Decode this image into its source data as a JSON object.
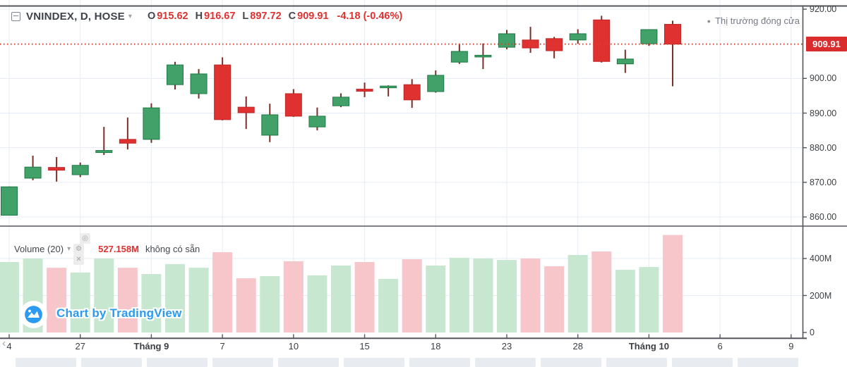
{
  "ui": {
    "header": {
      "symbol": "VNINDEX, D, HOSE",
      "ohlc": [
        {
          "k": "O",
          "v": "915.62"
        },
        {
          "k": "H",
          "v": "916.67"
        },
        {
          "k": "L",
          "v": "897.72"
        },
        {
          "k": "C",
          "v": "909.91"
        }
      ],
      "change": "-4.18 (-0.46%)",
      "market_status": "Thị trường đóng cửa",
      "status_dot": "●",
      "dropdown_glyph": "▾"
    },
    "badge": "909.91",
    "volume_pane": {
      "title": "Volume (20)",
      "caret": "▾",
      "value": "527.158M",
      "note": "không có sẵn",
      "icons": [
        {
          "name": "eye-icon",
          "glyph": "◎"
        },
        {
          "name": "gear-icon",
          "glyph": "⚙"
        },
        {
          "name": "close-icon",
          "glyph": "✕"
        }
      ]
    },
    "attribution": "Chart by TradingView",
    "scroll_left_glyph": "‹"
  },
  "colors": {
    "up": "#42a168",
    "up_border": "#1d7a45",
    "down": "#e03131",
    "down_border": "#bf2626",
    "wick": "#7c2f26",
    "vol_up": "#c7e7d0",
    "vol_down": "#f7c6cb",
    "grid": "#e6ecf3",
    "frame": "#53565c",
    "dotted": "#e23b2b",
    "badge_bg": "#da2c2c",
    "red_text": "#e03131",
    "blue": "#2b9af3",
    "muted": "#787b86",
    "axis_text": "#3c4043"
  },
  "chart_data": {
    "type": "candlestick",
    "title": "VNINDEX, D, HOSE",
    "legend_ohlc": {
      "o": 915.62,
      "h": 916.67,
      "l": 897.72,
      "c": 909.91,
      "change": -4.18,
      "change_pct": -0.46
    },
    "last_close": 909.91,
    "price_axis": {
      "min": 860,
      "max": 920,
      "ticks": [
        {
          "label": "920.00",
          "value": 920
        },
        {
          "label": "900.00",
          "value": 900
        },
        {
          "label": "890.00",
          "value": 890
        },
        {
          "label": "880.00",
          "value": 880
        },
        {
          "label": "870.00",
          "value": 870
        },
        {
          "label": "860.00",
          "value": 860
        }
      ]
    },
    "time_axis": {
      "ticks": [
        {
          "label": "4",
          "candle_index": 0
        },
        {
          "label": "27",
          "candle_index": 3
        },
        {
          "label": "Tháng 9",
          "candle_index": 6,
          "bold": true
        },
        {
          "label": "7",
          "candle_index": 9
        },
        {
          "label": "10",
          "candle_index": 12
        },
        {
          "label": "15",
          "candle_index": 15
        },
        {
          "label": "18",
          "candle_index": 18
        },
        {
          "label": "23",
          "candle_index": 21
        },
        {
          "label": "28",
          "candle_index": 24
        },
        {
          "label": "Tháng 10",
          "candle_index": 27,
          "bold": true
        },
        {
          "label": "6",
          "candle_index": 30
        },
        {
          "label": "9",
          "candle_index": 33
        }
      ]
    },
    "candles": [
      {
        "o": 860.5,
        "h": 868.8,
        "l": 860.4,
        "c": 868.7
      },
      {
        "o": 871.2,
        "h": 877.7,
        "l": 870.6,
        "c": 874.4
      },
      {
        "o": 874.3,
        "h": 877.3,
        "l": 870.2,
        "c": 873.5
      },
      {
        "o": 872.2,
        "h": 875.7,
        "l": 871.5,
        "c": 874.9
      },
      {
        "o": 878.6,
        "h": 886.0,
        "l": 877.9,
        "c": 879.2
      },
      {
        "o": 882.4,
        "h": 888.7,
        "l": 879.5,
        "c": 881.3
      },
      {
        "o": 882.4,
        "h": 892.8,
        "l": 881.4,
        "c": 891.5
      },
      {
        "o": 898.2,
        "h": 904.8,
        "l": 896.8,
        "c": 903.9
      },
      {
        "o": 895.6,
        "h": 902.7,
        "l": 894.2,
        "c": 901.3
      },
      {
        "o": 903.9,
        "h": 906.1,
        "l": 887.9,
        "c": 888.1
      },
      {
        "o": 891.7,
        "h": 894.8,
        "l": 885.4,
        "c": 890.1
      },
      {
        "o": 883.6,
        "h": 892.7,
        "l": 881.6,
        "c": 889.5
      },
      {
        "o": 895.6,
        "h": 896.9,
        "l": 888.9,
        "c": 889.1
      },
      {
        "o": 886.0,
        "h": 891.6,
        "l": 885.0,
        "c": 889.1
      },
      {
        "o": 892.1,
        "h": 895.7,
        "l": 891.7,
        "c": 894.6
      },
      {
        "o": 896.9,
        "h": 898.8,
        "l": 894.6,
        "c": 896.3
      },
      {
        "o": 897.4,
        "h": 898.0,
        "l": 894.8,
        "c": 897.8
      },
      {
        "o": 898.2,
        "h": 899.8,
        "l": 891.5,
        "c": 893.8
      },
      {
        "o": 896.2,
        "h": 902.3,
        "l": 895.9,
        "c": 900.9
      },
      {
        "o": 904.7,
        "h": 910.0,
        "l": 904.2,
        "c": 907.8
      },
      {
        "o": 906.2,
        "h": 910.1,
        "l": 902.7,
        "c": 906.7
      },
      {
        "o": 909.0,
        "h": 914.0,
        "l": 908.4,
        "c": 912.9
      },
      {
        "o": 911.1,
        "h": 914.9,
        "l": 907.4,
        "c": 908.8
      },
      {
        "o": 911.5,
        "h": 912.0,
        "l": 905.8,
        "c": 908.0
      },
      {
        "o": 911.1,
        "h": 914.2,
        "l": 910.0,
        "c": 912.9
      },
      {
        "o": 916.9,
        "h": 918.1,
        "l": 904.6,
        "c": 904.9
      },
      {
        "o": 904.2,
        "h": 908.3,
        "l": 901.6,
        "c": 905.6
      },
      {
        "o": 910.0,
        "h": 914.2,
        "l": 909.4,
        "c": 914.1
      },
      {
        "o": 915.62,
        "h": 916.67,
        "l": 897.72,
        "c": 909.91
      }
    ],
    "volume": {
      "indicator": "Volume (20)",
      "current_label": "527.158M",
      "values_m": [
        381,
        400,
        350,
        324,
        400,
        350,
        316,
        370,
        350,
        434,
        293,
        305,
        385,
        309,
        362,
        381,
        290,
        396,
        362,
        404,
        400,
        392,
        400,
        358,
        419,
        438,
        339,
        354,
        527.158
      ],
      "ticks": [
        {
          "label": "400M",
          "value": 400
        },
        {
          "label": "200M",
          "value": 200
        },
        {
          "label": "0",
          "value": 0
        }
      ]
    }
  }
}
